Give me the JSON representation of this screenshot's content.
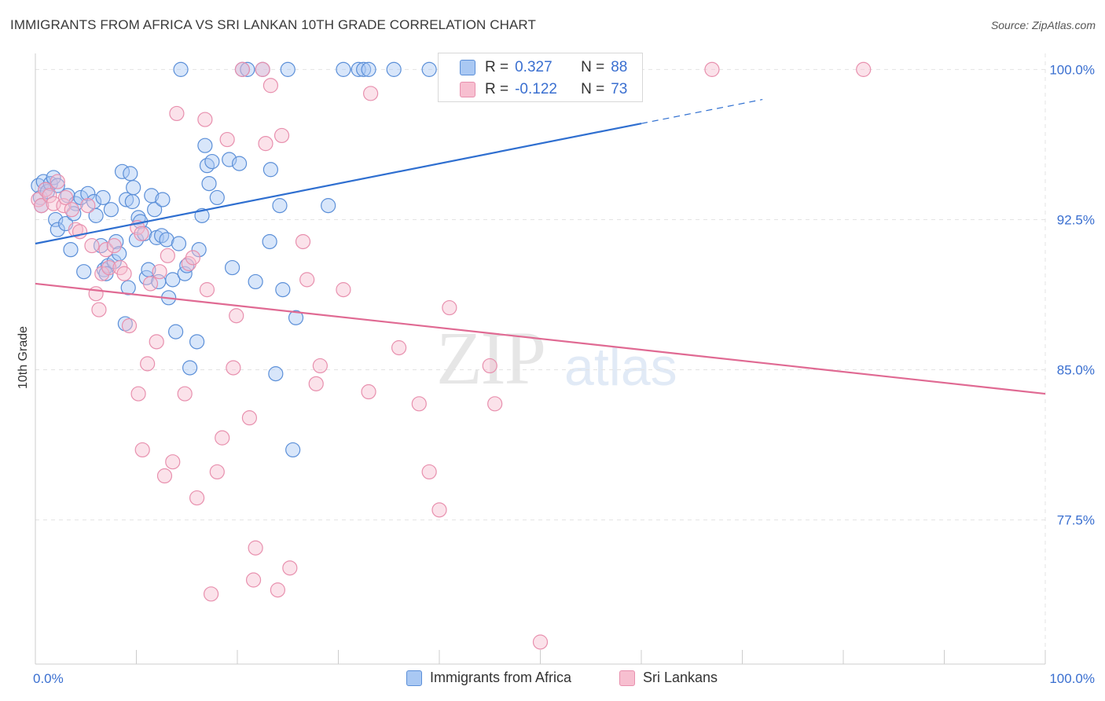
{
  "header": {
    "title": "IMMIGRANTS FROM AFRICA VS SRI LANKAN 10TH GRADE CORRELATION CHART",
    "source": "Source: ZipAtlas.com"
  },
  "watermark": {
    "zip": "ZIP",
    "atlas": "atlas"
  },
  "colors": {
    "africa_fill": "#a9c8f3",
    "africa_stroke": "#5b8fd8",
    "africa_line": "#2f6fd0",
    "lanka_fill": "#f7bfd0",
    "lanka_stroke": "#e890ae",
    "lanka_line": "#e06a93",
    "tick_label": "#3a6fd0",
    "grid": "#e3e3e3"
  },
  "legend_top": {
    "rows": [
      {
        "r_label": "R =",
        "r_value": "0.327",
        "n_label": "N =",
        "n_value": "88"
      },
      {
        "r_label": "R =",
        "r_value": "-0.122",
        "n_label": "N =",
        "n_value": "73"
      }
    ]
  },
  "legend_bottom": {
    "items": [
      "Immigrants from Africa",
      "Sri Lankans"
    ]
  },
  "chart_data": {
    "type": "scatter",
    "title": "IMMIGRANTS FROM AFRICA VS SRI LANKAN 10TH GRADE CORRELATION CHART",
    "xlabel": "",
    "ylabel": "10th Grade",
    "xlim": [
      0,
      100
    ],
    "ylim": [
      70.3,
      100.8
    ],
    "x_tick_labels": [
      "0.0%",
      "100.0%"
    ],
    "y_ticks": [
      100.0,
      92.5,
      85.0,
      77.5
    ],
    "y_tick_labels": [
      "100.0%",
      "92.5%",
      "85.0%",
      "77.5%"
    ],
    "grid": true,
    "legend_position": "top-center",
    "series": [
      {
        "name": "Immigrants from Africa",
        "r": 0.327,
        "n": 88,
        "trend": {
          "x": [
            0,
            100
          ],
          "y": [
            91.3,
            101.3
          ],
          "solid_until_x": 60
        },
        "points": [
          [
            0.3,
            94.2
          ],
          [
            0.5,
            93.6
          ],
          [
            0.6,
            93.2
          ],
          [
            0.8,
            94.4
          ],
          [
            1.0,
            94.0
          ],
          [
            1.2,
            93.9
          ],
          [
            1.5,
            94.3
          ],
          [
            1.8,
            94.6
          ],
          [
            2.2,
            94.2
          ],
          [
            2.0,
            92.5
          ],
          [
            2.2,
            92.0
          ],
          [
            3.0,
            92.3
          ],
          [
            3.2,
            93.7
          ],
          [
            4.0,
            93.3
          ],
          [
            3.8,
            92.8
          ],
          [
            4.5,
            93.6
          ],
          [
            3.5,
            91.0
          ],
          [
            4.8,
            89.9
          ],
          [
            5.2,
            93.8
          ],
          [
            5.8,
            93.4
          ],
          [
            6.0,
            92.7
          ],
          [
            6.5,
            91.2
          ],
          [
            6.7,
            93.6
          ],
          [
            6.8,
            90.0
          ],
          [
            7.2,
            90.2
          ],
          [
            7.0,
            89.8
          ],
          [
            7.5,
            93.0
          ],
          [
            7.8,
            90.4
          ],
          [
            8.0,
            91.4
          ],
          [
            8.3,
            90.8
          ],
          [
            8.6,
            94.9
          ],
          [
            8.9,
            87.3
          ],
          [
            9.0,
            93.5
          ],
          [
            9.4,
            94.8
          ],
          [
            9.6,
            93.4
          ],
          [
            9.2,
            89.1
          ],
          [
            9.7,
            94.1
          ],
          [
            10.0,
            91.5
          ],
          [
            10.2,
            92.6
          ],
          [
            10.4,
            92.4
          ],
          [
            10.8,
            91.8
          ],
          [
            11.0,
            89.6
          ],
          [
            11.2,
            90.0
          ],
          [
            11.5,
            93.7
          ],
          [
            11.8,
            93.0
          ],
          [
            12.0,
            91.6
          ],
          [
            12.2,
            89.4
          ],
          [
            12.5,
            91.7
          ],
          [
            12.6,
            93.5
          ],
          [
            13.0,
            91.5
          ],
          [
            13.2,
            88.6
          ],
          [
            13.6,
            89.5
          ],
          [
            13.9,
            86.9
          ],
          [
            14.2,
            91.3
          ],
          [
            14.4,
            100.0
          ],
          [
            14.8,
            89.8
          ],
          [
            15.0,
            90.2
          ],
          [
            15.3,
            85.1
          ],
          [
            16.0,
            86.4
          ],
          [
            16.2,
            91.0
          ],
          [
            16.5,
            92.7
          ],
          [
            16.8,
            96.2
          ],
          [
            17.0,
            95.2
          ],
          [
            17.2,
            94.3
          ],
          [
            17.5,
            95.4
          ],
          [
            18.0,
            93.6
          ],
          [
            19.2,
            95.5
          ],
          [
            19.5,
            90.1
          ],
          [
            20.2,
            95.3
          ],
          [
            20.5,
            100.0
          ],
          [
            21.0,
            100.0
          ],
          [
            21.8,
            89.4
          ],
          [
            22.5,
            100.0
          ],
          [
            23.2,
            91.4
          ],
          [
            23.3,
            95.0
          ],
          [
            23.8,
            84.8
          ],
          [
            24.2,
            93.2
          ],
          [
            24.5,
            89.0
          ],
          [
            25.0,
            100.0
          ],
          [
            25.5,
            81.0
          ],
          [
            25.8,
            87.6
          ],
          [
            29.0,
            93.2
          ],
          [
            30.5,
            100.0
          ],
          [
            32.0,
            100.0
          ],
          [
            32.5,
            100.0
          ],
          [
            33.0,
            100.0
          ],
          [
            35.5,
            100.0
          ],
          [
            39.0,
            100.0
          ]
        ]
      },
      {
        "name": "Sri Lankans",
        "r": -0.122,
        "n": 73,
        "trend": {
          "x": [
            0,
            100
          ],
          "y": [
            89.3,
            83.8
          ]
        },
        "points": [
          [
            0.3,
            93.5
          ],
          [
            0.6,
            93.2
          ],
          [
            1.0,
            94.0
          ],
          [
            1.4,
            93.7
          ],
          [
            1.8,
            93.3
          ],
          [
            2.2,
            94.4
          ],
          [
            2.8,
            93.2
          ],
          [
            3.0,
            93.6
          ],
          [
            3.6,
            93.0
          ],
          [
            4.0,
            92.0
          ],
          [
            4.4,
            91.9
          ],
          [
            5.2,
            93.2
          ],
          [
            5.6,
            91.2
          ],
          [
            6.0,
            88.8
          ],
          [
            6.3,
            88.0
          ],
          [
            6.6,
            89.8
          ],
          [
            7.0,
            91.0
          ],
          [
            7.3,
            90.1
          ],
          [
            7.8,
            91.2
          ],
          [
            8.4,
            90.1
          ],
          [
            8.8,
            89.8
          ],
          [
            9.3,
            87.2
          ],
          [
            10.1,
            92.1
          ],
          [
            10.2,
            83.8
          ],
          [
            10.5,
            91.8
          ],
          [
            10.6,
            81.0
          ],
          [
            11.1,
            85.3
          ],
          [
            11.4,
            89.3
          ],
          [
            12.0,
            86.4
          ],
          [
            12.3,
            89.9
          ],
          [
            12.8,
            79.7
          ],
          [
            13.1,
            90.7
          ],
          [
            13.6,
            80.4
          ],
          [
            14.0,
            97.8
          ],
          [
            14.8,
            83.8
          ],
          [
            15.2,
            90.3
          ],
          [
            15.6,
            90.6
          ],
          [
            16.0,
            78.6
          ],
          [
            16.8,
            97.5
          ],
          [
            17.0,
            89.0
          ],
          [
            17.4,
            73.8
          ],
          [
            18.0,
            79.9
          ],
          [
            18.5,
            81.6
          ],
          [
            19.0,
            96.5
          ],
          [
            19.6,
            85.1
          ],
          [
            19.9,
            87.7
          ],
          [
            20.5,
            100.0
          ],
          [
            21.2,
            82.6
          ],
          [
            21.6,
            74.5
          ],
          [
            21.8,
            76.1
          ],
          [
            22.5,
            100.0
          ],
          [
            22.8,
            96.3
          ],
          [
            23.3,
            99.2
          ],
          [
            24.0,
            74.0
          ],
          [
            24.4,
            96.7
          ],
          [
            25.2,
            75.1
          ],
          [
            26.5,
            91.4
          ],
          [
            26.9,
            89.5
          ],
          [
            27.8,
            84.3
          ],
          [
            28.2,
            85.2
          ],
          [
            30.5,
            89.0
          ],
          [
            33.0,
            83.9
          ],
          [
            33.2,
            98.8
          ],
          [
            36.0,
            86.1
          ],
          [
            38.0,
            83.3
          ],
          [
            39.0,
            79.9
          ],
          [
            40.0,
            78.0
          ],
          [
            41.0,
            88.1
          ],
          [
            45.0,
            85.2
          ],
          [
            45.5,
            83.3
          ],
          [
            50.0,
            71.4
          ],
          [
            67.0,
            100.0
          ],
          [
            82.0,
            100.0
          ]
        ]
      }
    ]
  }
}
